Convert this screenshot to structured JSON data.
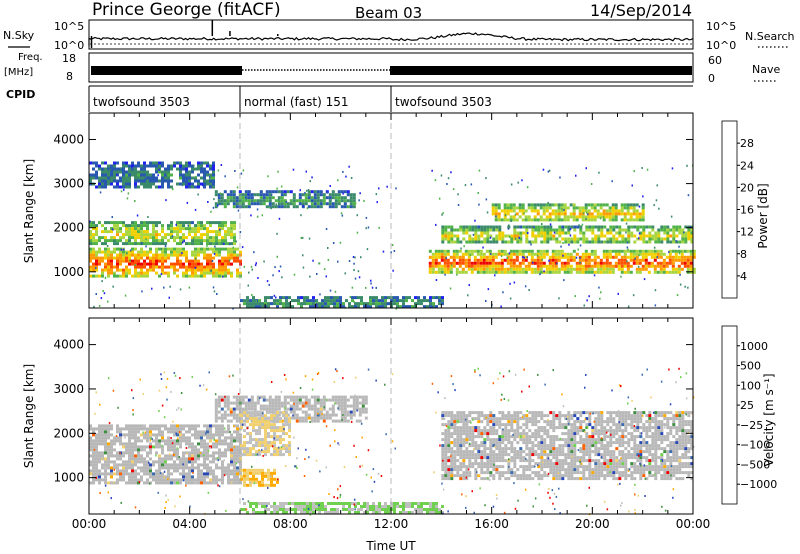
{
  "header": {
    "station": "Prince George (fitACF)",
    "beam": "Beam 03",
    "date": "14/Sep/2014"
  },
  "top_panels": {
    "nsky_label": "N.Sky",
    "nsearch_label": "N.Search",
    "noise_ticks_left": [
      "10^5",
      "10^0"
    ],
    "noise_ticks_right": [
      "10^5",
      "10^0"
    ],
    "freq_label_1": "Freq.",
    "freq_label_2": "[MHz]",
    "freq_ticks": [
      "18",
      "8"
    ],
    "nave_ticks": [
      "60",
      "0"
    ],
    "nave_label": "Nave",
    "cpid_label": "CPID",
    "cpid_segments": [
      {
        "label": "twofsound 3503",
        "start_hour": 0,
        "end_hour": 6
      },
      {
        "label": "normal (fast) 151",
        "start_hour": 6,
        "end_hour": 12
      },
      {
        "label": "twofsound 3503",
        "start_hour": 12,
        "end_hour": 24
      }
    ]
  },
  "colors": {
    "power_scale": [
      "#2020ee",
      "#2858b0",
      "#3b8a6a",
      "#52b24a",
      "#a8d640",
      "#f0d000",
      "#ff9a00",
      "#ff5000",
      "#ee0000"
    ],
    "velocity_scale": [
      "#2848b8",
      "#3c6cb0",
      "#3d9040",
      "#70d050",
      "#c0c0c0",
      "#f0d070",
      "#ffaa00",
      "#ff6000",
      "#ee0000"
    ],
    "ground_scatter": "#b8b8b8"
  },
  "chart_data": [
    {
      "type": "heatmap",
      "name": "power",
      "xlabel": "",
      "ylabel": "Slant Range [km]",
      "x_ticks": [
        "00:00",
        "04:00",
        "08:00",
        "12:00",
        "16:00",
        "20:00",
        "00:00"
      ],
      "y_ticks": [
        "1000",
        "2000",
        "3000",
        "4000"
      ],
      "xlim": [
        0,
        24
      ],
      "ylim": [
        180,
        4600
      ],
      "colorbar": {
        "label": "Power [dB]",
        "tick_labels": [
          "4",
          "8",
          "12",
          "16",
          "20",
          "24",
          "28"
        ],
        "range": [
          0,
          30
        ]
      },
      "echo_bands": [
        {
          "x": [
            0,
            6
          ],
          "y": [
            900,
            1550
          ],
          "value": 24
        },
        {
          "x": [
            0,
            5.8
          ],
          "y": [
            1650,
            2150
          ],
          "value": 16
        },
        {
          "x": [
            5,
            10.5
          ],
          "y": [
            2450,
            2850
          ],
          "value": 8
        },
        {
          "x": [
            13.5,
            24
          ],
          "y": [
            1000,
            1500
          ],
          "value": 24
        },
        {
          "x": [
            14,
            24
          ],
          "y": [
            1650,
            2050
          ],
          "value": 16
        },
        {
          "x": [
            16,
            22
          ],
          "y": [
            2150,
            2550
          ],
          "value": 18
        },
        {
          "x": [
            6,
            14
          ],
          "y": [
            200,
            450
          ],
          "value": 8
        },
        {
          "x": [
            0,
            5
          ],
          "y": [
            2900,
            3500
          ],
          "value": 6
        }
      ]
    },
    {
      "type": "heatmap",
      "name": "velocity",
      "xlabel": "Time UT",
      "ylabel": "Slant Range [km]",
      "x_ticks": [
        "00:00",
        "04:00",
        "08:00",
        "12:00",
        "16:00",
        "20:00",
        "00:00"
      ],
      "y_ticks": [
        "1000",
        "2000",
        "3000",
        "4000"
      ],
      "xlim": [
        0,
        24
      ],
      "ylim": [
        180,
        4600
      ],
      "colorbar": {
        "label": "Velocity [m s⁻¹]",
        "tick_labels": [
          "1000",
          "500",
          "100",
          "25",
          "−25",
          "−100",
          "−500",
          "−1000"
        ],
        "range": [
          -1000,
          1000
        ]
      },
      "echo_bands": [
        {
          "x": [
            0,
            6
          ],
          "y": [
            900,
            2200
          ],
          "value": 0,
          "ground_scatter": true
        },
        {
          "x": [
            5,
            11
          ],
          "y": [
            2300,
            2850
          ],
          "value": 0,
          "ground_scatter": true
        },
        {
          "x": [
            14,
            24
          ],
          "y": [
            1000,
            2500
          ],
          "value": 0,
          "ground_scatter": true
        },
        {
          "x": [
            6,
            8
          ],
          "y": [
            1500,
            2500
          ],
          "value": -300
        },
        {
          "x": [
            6,
            7.5
          ],
          "y": [
            800,
            1200
          ],
          "value": -500
        },
        {
          "x": [
            6,
            14
          ],
          "y": [
            200,
            450
          ],
          "value": -60
        }
      ]
    }
  ]
}
